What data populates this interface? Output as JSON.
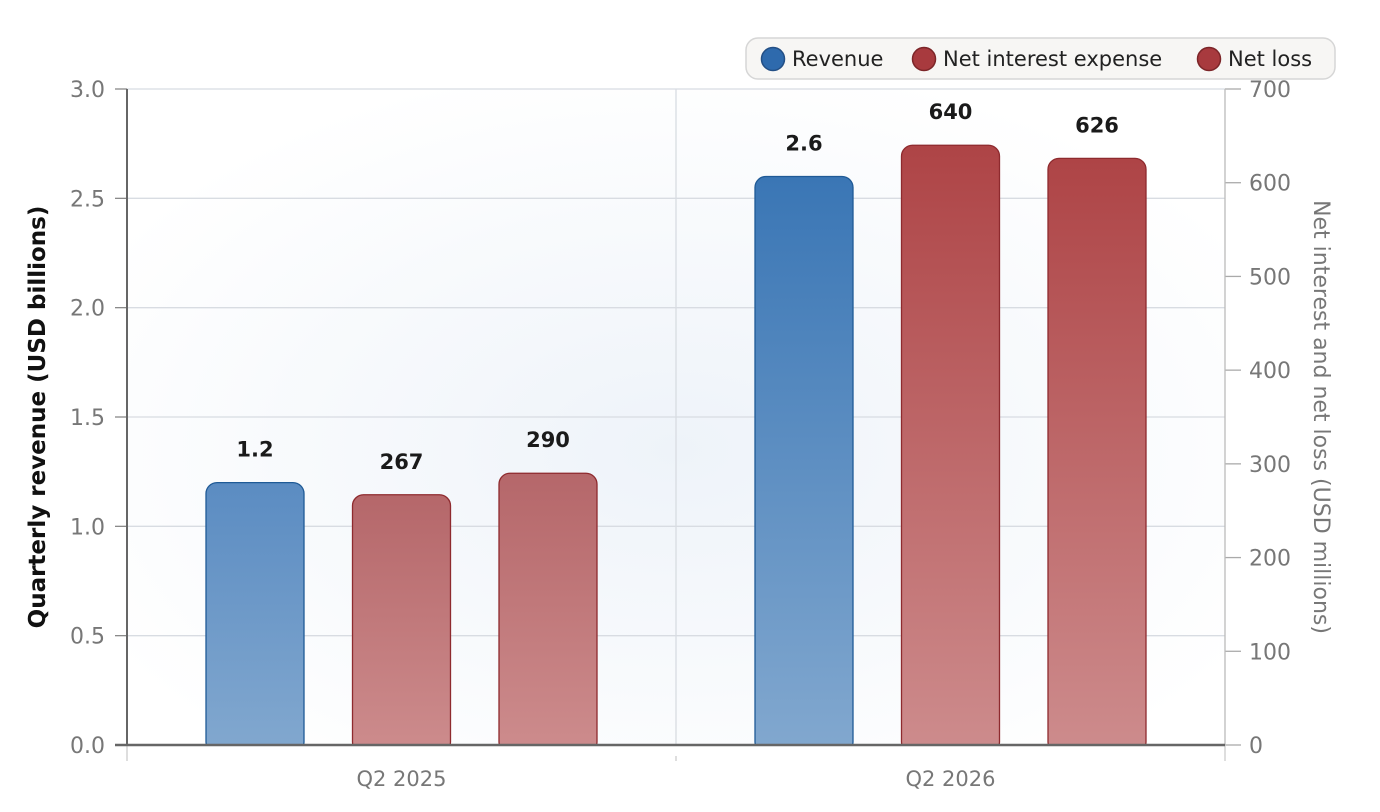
{
  "chart_data": {
    "type": "bar",
    "title": "",
    "categories": [
      "Q2 2025",
      "Q2 2026"
    ],
    "series": [
      {
        "name": "Revenue",
        "axis": "left",
        "values": [
          1.2,
          2.6
        ],
        "labels": [
          "1.2",
          "2.6"
        ],
        "color": "#2e6aad"
      },
      {
        "name": "Net interest expense",
        "axis": "right",
        "values": [
          267,
          640
        ],
        "labels": [
          "267",
          "640"
        ],
        "color": "#a83a3e"
      },
      {
        "name": "Net loss",
        "axis": "right",
        "values": [
          290,
          626
        ],
        "labels": [
          "290",
          "626"
        ],
        "color": "#a83a3e"
      }
    ],
    "y_left": {
      "label": "Quarterly revenue (USD billions)",
      "range": [
        0,
        3.0
      ],
      "ticks": [
        "0.0",
        "0.5",
        "1.0",
        "1.5",
        "2.0",
        "2.5",
        "3.0"
      ]
    },
    "y_right": {
      "label": "Net interest and net loss (USD millions)",
      "range": [
        0,
        700
      ],
      "ticks": [
        "0",
        "100",
        "200",
        "300",
        "400",
        "500",
        "600",
        "700"
      ]
    },
    "grid": true,
    "legend_position": "top-right"
  }
}
